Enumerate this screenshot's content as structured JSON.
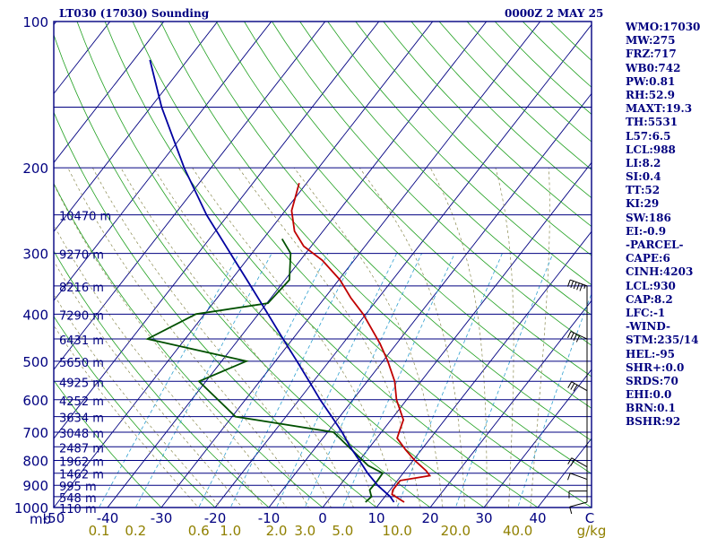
{
  "header": {
    "station": "LT030 (17030) Sounding",
    "time": "0000Z  2 MAY 25"
  },
  "indices": [
    "WMO:17030",
    "MW:275",
    "FRZ:717",
    "WB0:742",
    "PW:0.81",
    "RH:52.9",
    "MAXT:19.3",
    "TH:5531",
    "L57:6.5",
    "LCL:988",
    "LI:8.2",
    "SI:0.4",
    "TT:52",
    "KI:29",
    "SW:186",
    "EI:-0.9",
    "-PARCEL-",
    "CAPE:6",
    "CINH:4203",
    "LCL:930",
    "CAP:8.2",
    "LFC:-1",
    "-WIND-",
    "STM:235/14",
    "HEL:-95",
    "SHR+:0.0",
    "SRDS:70",
    "EHI:0.0",
    "BRN:0.1",
    "BSHR:92"
  ],
  "chart_data": {
    "type": "line",
    "diagram": "skew-T log-p",
    "x_unit": "C",
    "y_unit": "mb",
    "xlim": [
      -50,
      50
    ],
    "ylim": [
      1000,
      100
    ],
    "y_scale": "log",
    "pressure_labels": [
      100,
      200,
      300,
      400,
      500,
      600,
      700,
      800,
      900,
      1000
    ],
    "pressure_axis_unit_label": "mb",
    "temperature_ticks": [
      -50,
      -40,
      -30,
      -20,
      -10,
      0,
      10,
      20,
      30,
      40
    ],
    "temperature_tick_labels": [
      "-50",
      "-40",
      "-30",
      "-20",
      "-10",
      "0",
      "10",
      "20",
      "30",
      "40"
    ],
    "temperature_axis_unit_label": "C",
    "mixing_ratio_labels": [
      "0.1",
      "0.2",
      "0.6",
      "1.0",
      "2.0",
      "3.0",
      "5.0",
      "10.0",
      "20.0",
      "40.0"
    ],
    "mixing_ratio_unit_label": "g/kg",
    "height_labels": [
      {
        "p": 250,
        "text": "10470 m"
      },
      {
        "p": 300,
        "text": "9270 m"
      },
      {
        "p": 350,
        "text": "8216 m"
      },
      {
        "p": 400,
        "text": "7290 m"
      },
      {
        "p": 450,
        "text": "6431 m"
      },
      {
        "p": 500,
        "text": "5650 m"
      },
      {
        "p": 550,
        "text": "4925 m"
      },
      {
        "p": 600,
        "text": "4252 m"
      },
      {
        "p": 650,
        "text": "3634 m"
      },
      {
        "p": 700,
        "text": "3048 m"
      },
      {
        "p": 750,
        "text": "2487 m"
      },
      {
        "p": 800,
        "text": "1962 m"
      },
      {
        "p": 850,
        "text": "1462 m"
      },
      {
        "p": 900,
        "text": "995 m"
      },
      {
        "p": 950,
        "text": "548 m"
      },
      {
        "p": 1000,
        "text": "110 m"
      }
    ],
    "series": [
      {
        "color": "#c00000",
        "points": [
          [
            975,
            14.4
          ],
          [
            955,
            12.5
          ],
          [
            940,
            11.0
          ],
          [
            920,
            10.5
          ],
          [
            880,
            10.5
          ],
          [
            860,
            15.3
          ],
          [
            840,
            13.9
          ],
          [
            800,
            10.3
          ],
          [
            760,
            7.0
          ],
          [
            720,
            3.8
          ],
          [
            700,
            3.3
          ],
          [
            660,
            2.3
          ],
          [
            600,
            -1.9
          ],
          [
            550,
            -4.9
          ],
          [
            500,
            -9.1
          ],
          [
            460,
            -13.1
          ],
          [
            400,
            -20.5
          ],
          [
            370,
            -25.2
          ],
          [
            340,
            -29.8
          ],
          [
            310,
            -35.9
          ],
          [
            290,
            -41.4
          ],
          [
            270,
            -45.3
          ],
          [
            245,
            -48.8
          ],
          [
            225,
            -50.5
          ],
          [
            215,
            -51.4
          ]
        ]
      },
      {
        "color": "#005000",
        "points": [
          [
            975,
            7.2
          ],
          [
            950,
            7.5
          ],
          [
            920,
            6.2
          ],
          [
            880,
            6.3
          ],
          [
            850,
            6.2
          ],
          [
            820,
            2.4
          ],
          [
            700,
            -8.9
          ],
          [
            650,
            -29.4
          ],
          [
            550,
            -41.3
          ],
          [
            500,
            -35.4
          ],
          [
            450,
            -57.0
          ],
          [
            400,
            -51.6
          ],
          [
            380,
            -39.8
          ],
          [
            340,
            -39.2
          ],
          [
            300,
            -42.8
          ],
          [
            280,
            -46.5
          ]
        ]
      },
      {
        "color": "#0000a0",
        "points": [
          [
            975,
            12.5
          ],
          [
            950,
            11.0
          ],
          [
            900,
            7.0
          ],
          [
            850,
            3.4
          ],
          [
            800,
            0.0
          ],
          [
            750,
            -3.7
          ],
          [
            700,
            -7.3
          ],
          [
            650,
            -11.5
          ],
          [
            600,
            -16.1
          ],
          [
            550,
            -20.8
          ],
          [
            500,
            -26.0
          ],
          [
            450,
            -31.8
          ],
          [
            400,
            -38.2
          ],
          [
            350,
            -45.5
          ],
          [
            300,
            -54.0
          ],
          [
            250,
            -64.0
          ],
          [
            200,
            -75.0
          ],
          [
            150,
            -88.0
          ],
          [
            120,
            -97.0
          ]
        ]
      }
    ],
    "wind_barbs": [
      {
        "p": 975,
        "dir": 255,
        "spd": 10
      },
      {
        "p": 925,
        "dir": 270,
        "spd": 10
      },
      {
        "p": 875,
        "dir": 290,
        "spd": 10
      },
      {
        "p": 825,
        "dir": 300,
        "spd": 20
      },
      {
        "p": 575,
        "dir": 300,
        "spd": 30
      },
      {
        "p": 450,
        "dir": 295,
        "spd": 40
      },
      {
        "p": 350,
        "dir": 290,
        "spd": 55
      }
    ]
  }
}
